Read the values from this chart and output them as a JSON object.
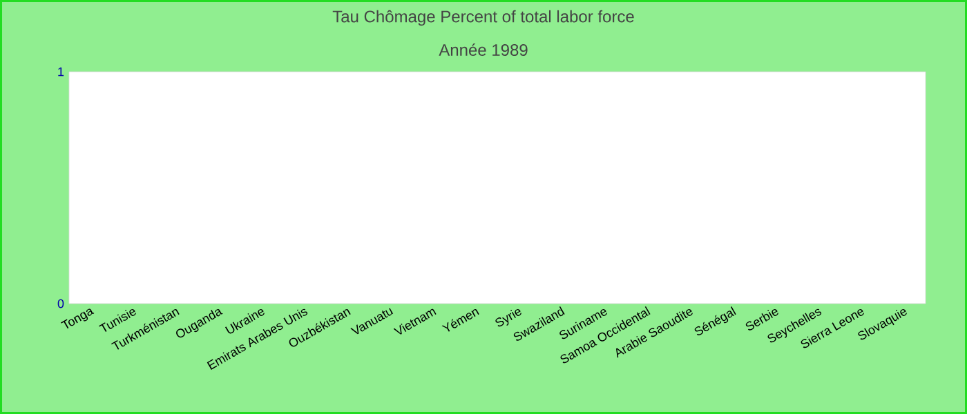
{
  "chart_data": {
    "type": "bar",
    "title": "Tau Chômage  Percent of total labor force",
    "subtitle": "Année 1989",
    "categories": [
      "Tonga",
      "Tunisie",
      "Turkménistan",
      "Ouganda",
      "Ukraine",
      "Emirats Arabes Unis",
      "Ouzbékistan",
      "Vanuatu",
      "Vietnam",
      "Yémen",
      "Syrie",
      "Swaziland",
      "Suriname",
      "Samoa Occidental",
      "Arabie Saoudite",
      "Sénégal",
      "Serbie",
      "Seychelles",
      "Sierra Leone",
      "Slovaquie"
    ],
    "values": [
      null,
      null,
      null,
      null,
      null,
      null,
      null,
      null,
      null,
      null,
      null,
      null,
      null,
      null,
      null,
      null,
      null,
      null,
      null,
      null
    ],
    "ylim": [
      0,
      1
    ],
    "yticks": [
      0,
      1
    ]
  }
}
